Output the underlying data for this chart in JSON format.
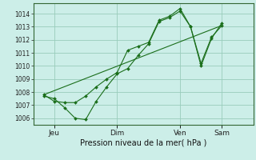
{
  "background_color": "#cceee8",
  "grid_color": "#99ccbb",
  "line_color": "#1a6e1a",
  "marker_color": "#1a6e1a",
  "xlabel": "Pression niveau de la mer( hPa )",
  "ylim": [
    1005.5,
    1014.8
  ],
  "yticks": [
    1006,
    1007,
    1008,
    1009,
    1010,
    1011,
    1012,
    1013,
    1014
  ],
  "xtick_labels": [
    "Jeu",
    "Dim",
    "Ven",
    "Sam"
  ],
  "xtick_positions": [
    1,
    4,
    7,
    9
  ],
  "xlim": [
    0,
    10.5
  ],
  "series1_x": [
    0.5,
    1.0,
    1.5,
    2.0,
    2.5,
    3.0,
    3.5,
    4.0,
    4.5,
    5.0,
    5.5,
    6.0,
    6.5,
    7.0,
    7.5,
    8.0,
    8.5,
    9.0
  ],
  "series1_y": [
    1007.7,
    1007.5,
    1006.8,
    1006.0,
    1005.9,
    1007.3,
    1008.4,
    1009.4,
    1009.8,
    1010.8,
    1011.7,
    1013.4,
    1013.7,
    1014.2,
    1013.0,
    1010.0,
    1012.1,
    1013.3
  ],
  "series2_x": [
    0.5,
    1.0,
    1.5,
    2.0,
    2.5,
    3.0,
    3.5,
    4.0,
    4.5,
    5.0,
    5.5,
    6.0,
    6.5,
    7.0,
    7.5,
    8.0,
    8.5,
    9.0
  ],
  "series2_y": [
    1007.8,
    1007.3,
    1007.2,
    1007.2,
    1007.7,
    1008.4,
    1009.0,
    1009.5,
    1011.2,
    1011.5,
    1011.8,
    1013.5,
    1013.8,
    1014.4,
    1013.0,
    1010.2,
    1012.2,
    1013.1
  ],
  "trend_x": [
    0.5,
    9.0
  ],
  "trend_y": [
    1007.8,
    1013.1
  ],
  "figsize": [
    3.2,
    2.0
  ],
  "dpi": 100
}
